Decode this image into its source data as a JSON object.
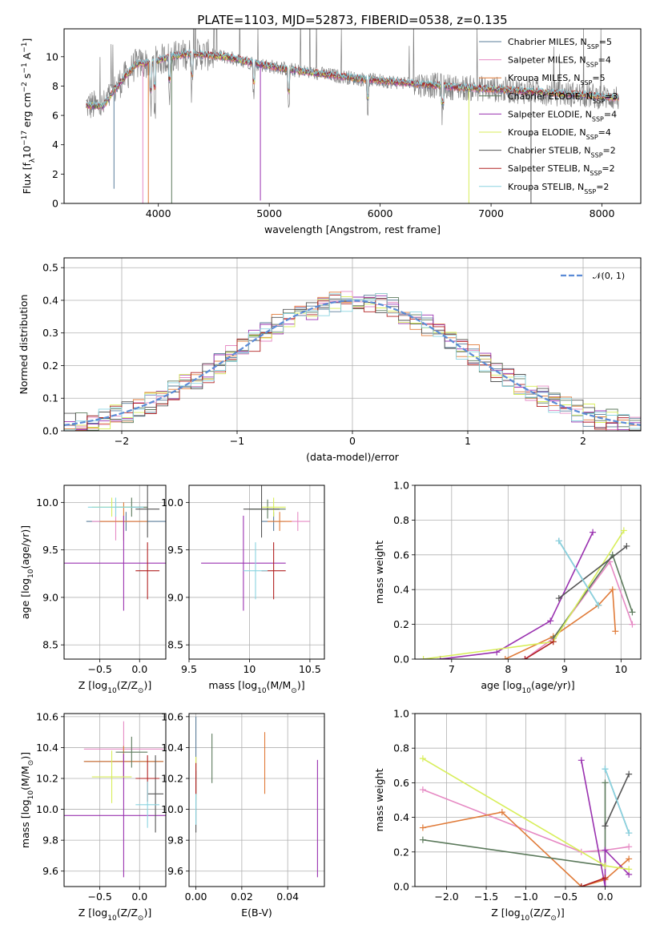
{
  "figure_title": "PLATE=1103, MJD=52873, FIBERID=0538, z=0.135",
  "models": [
    {
      "name": "Chabrier MILES",
      "nssp": "5",
      "color": "#5a7d9a"
    },
    {
      "name": "Salpeter MILES",
      "nssp": "4",
      "color": "#e68ac4"
    },
    {
      "name": "Kroupa MILES",
      "nssp": "5",
      "color": "#e07b39"
    },
    {
      "name": "Chabrier ELODIE",
      "nssp": "3",
      "color": "#5c7a5c"
    },
    {
      "name": "Salpeter ELODIE",
      "nssp": "4",
      "color": "#9a32b0"
    },
    {
      "name": "Kroupa ELODIE",
      "nssp": "4",
      "color": "#d8ee5a"
    },
    {
      "name": "Chabrier STELIB",
      "nssp": "2",
      "color": "#555555"
    },
    {
      "name": "Salpeter STELIB",
      "nssp": "2",
      "color": "#b22222"
    },
    {
      "name": "Kroupa STELIB",
      "nssp": "2",
      "color": "#8ad4e0"
    }
  ],
  "nssp_prefix": "N",
  "nssp_sub": "SSP",
  "nssp_eq": "=",
  "chart_data": [
    {
      "id": "spectrum",
      "type": "line",
      "xlabel": "wavelength [Angstrom, rest frame]",
      "ylabel_parts": [
        "Flux [f",
        "λ",
        "10",
        "−17",
        " erg cm",
        "−2",
        " s",
        "−1",
        " A",
        "−1",
        "]"
      ],
      "xlim": [
        3150,
        8350
      ],
      "ylim": [
        0,
        11.9
      ],
      "xticks": [
        4000,
        5000,
        6000,
        7000,
        8000
      ],
      "yticks": [
        0,
        2,
        4,
        6,
        8,
        10
      ],
      "data_range": [
        3350,
        8150
      ],
      "continuum": [
        [
          3350,
          6.7
        ],
        [
          3500,
          6.6
        ],
        [
          3650,
          8.2
        ],
        [
          3800,
          9.5
        ],
        [
          3950,
          9.6
        ],
        [
          4100,
          10.0
        ],
        [
          4300,
          10.2
        ],
        [
          4600,
          10.0
        ],
        [
          4900,
          9.5
        ],
        [
          5200,
          9.1
        ],
        [
          5500,
          8.8
        ],
        [
          5800,
          8.5
        ],
        [
          6100,
          8.3
        ],
        [
          6400,
          8.1
        ],
        [
          6700,
          7.9
        ],
        [
          7000,
          7.8
        ],
        [
          7400,
          7.6
        ],
        [
          7800,
          7.4
        ],
        [
          8150,
          7.2
        ]
      ],
      "absorption_features": [
        [
          3933,
          3.0
        ],
        [
          3968,
          2.8
        ],
        [
          4101,
          2.5
        ],
        [
          4304,
          2.3
        ],
        [
          4861,
          2.0
        ],
        [
          5175,
          2.4
        ],
        [
          5890,
          2.0
        ],
        [
          6563,
          1.8
        ]
      ],
      "gaps": [
        [
          3600,
          1.0
        ],
        [
          3860,
          0.0
        ],
        [
          3910,
          0.0
        ],
        [
          4120,
          0.0
        ],
        [
          4920,
          0.2
        ],
        [
          6800,
          0.0
        ],
        [
          7360,
          0.0
        ]
      ]
    },
    {
      "id": "residuals",
      "type": "bar",
      "xlabel": "(data-model)/error",
      "ylabel": "Normed distribution",
      "xlim": [
        -2.5,
        2.5
      ],
      "ylim": [
        0,
        0.53
      ],
      "xticks": [
        -2,
        -1,
        0,
        1,
        2
      ],
      "yticks": [
        0,
        0.1,
        0.2,
        0.3,
        0.4,
        0.5
      ],
      "bin_width": 0.1,
      "reference_curve": "normal",
      "reference_label": "𝒩(0, 1)"
    },
    {
      "id": "age-vs-Z",
      "type": "scatter",
      "xlabel_parts": [
        "Z [log",
        "10",
        "(Z/Z",
        "⊙",
        ")]"
      ],
      "ylabel_parts": [
        "age  [log",
        "10",
        "(age/yr)]"
      ],
      "xlim": [
        -0.95,
        0.33
      ],
      "ylim": [
        8.35,
        10.18
      ],
      "xticks": [
        -0.5,
        0.0
      ],
      "xtick_labels": [
        "−0.5",
        "0.0"
      ],
      "yticks": [
        8.5,
        9.0,
        9.5,
        10.0
      ],
      "points": [
        [
          -0.17,
          9.8,
          0.5,
          0.1
        ],
        [
          -0.3,
          9.8,
          0.3,
          0.2
        ],
        [
          -0.2,
          9.8,
          0.3,
          0.2
        ],
        [
          -0.1,
          9.95,
          0.2,
          0.1
        ],
        [
          -0.2,
          9.36,
          0.8,
          0.5
        ],
        [
          -0.35,
          9.95,
          0.25,
          0.1
        ],
        [
          0.1,
          9.93,
          0.15,
          0.3
        ],
        [
          0.1,
          9.28,
          0.15,
          0.3
        ],
        [
          -0.3,
          9.95,
          0.35,
          0.1
        ]
      ]
    },
    {
      "id": "age-vs-mass",
      "type": "scatter",
      "xlabel_parts": [
        "mass [log",
        "10",
        "(M/M",
        "⊙",
        ")]"
      ],
      "ylabel": "",
      "xlim": [
        9.5,
        10.62
      ],
      "ylim": [
        8.35,
        10.18
      ],
      "xticks": [
        9.5,
        10.0,
        10.5
      ],
      "yticks": [
        8.5,
        9.0,
        9.5,
        10.0
      ],
      "points": [
        [
          10.2,
          9.8,
          0.1,
          0.1
        ],
        [
          10.4,
          9.8,
          0.1,
          0.1
        ],
        [
          10.25,
          9.8,
          0.1,
          0.1
        ],
        [
          10.15,
          9.93,
          0.15,
          0.1
        ],
        [
          9.95,
          9.36,
          0.35,
          0.5
        ],
        [
          10.2,
          9.95,
          0.1,
          0.1
        ],
        [
          10.1,
          9.93,
          0.15,
          0.3
        ],
        [
          10.2,
          9.28,
          0.1,
          0.3
        ],
        [
          10.05,
          9.28,
          0.1,
          0.3
        ]
      ]
    },
    {
      "id": "mass-weight-vs-age",
      "type": "line",
      "xlabel_parts": [
        "age  [log",
        "10",
        "(age/yr)]"
      ],
      "ylabel": "mass weight",
      "xlim": [
        6.35,
        10.35
      ],
      "ylim": [
        0,
        1.0
      ],
      "xticks": [
        7,
        8,
        9,
        10
      ],
      "yticks": [
        0.0,
        0.2,
        0.4,
        0.6,
        0.8,
        1.0
      ],
      "series": [
        {
          "x": [
            8.9,
            9.6
          ],
          "y": [
            0.68,
            0.31
          ]
        },
        {
          "x": [
            8.3,
            8.8,
            9.8,
            10.2
          ],
          "y": [
            0.0,
            0.12,
            0.56,
            0.2
          ]
        },
        {
          "x": [
            7.95,
            8.8,
            9.6,
            9.85,
            9.9
          ],
          "y": [
            0.0,
            0.13,
            0.31,
            0.4,
            0.16
          ]
        },
        {
          "x": [
            8.8,
            9.85,
            10.2
          ],
          "y": [
            0.12,
            0.6,
            0.27
          ]
        },
        {
          "x": [
            6.8,
            7.8,
            8.75,
            9.5
          ],
          "y": [
            0.0,
            0.04,
            0.22,
            0.73
          ]
        },
        {
          "x": [
            6.5,
            8.8,
            10.05
          ],
          "y": [
            0.0,
            0.1,
            0.74
          ]
        },
        {
          "x": [
            8.9,
            10.1
          ],
          "y": [
            0.35,
            0.65
          ]
        },
        {
          "x": [
            8.3,
            8.8
          ],
          "y": [
            0.0,
            0.1
          ]
        },
        {
          "x": [
            8.9,
            9.6
          ],
          "y": [
            0.68,
            0.31
          ]
        }
      ]
    },
    {
      "id": "mass-vs-Z",
      "type": "scatter",
      "xlabel_parts": [
        "Z [log",
        "10",
        "(Z/Z",
        "⊙",
        ")]"
      ],
      "ylabel_parts": [
        "mass [log",
        "10",
        "(M/M",
        "⊙",
        ")]"
      ],
      "xlim": [
        -0.95,
        0.33
      ],
      "ylim": [
        9.5,
        10.62
      ],
      "xticks": [
        -0.5,
        0.0
      ],
      "xtick_labels": [
        "−0.5",
        "0.0"
      ],
      "yticks": [
        9.6,
        9.8,
        10.0,
        10.2,
        10.4,
        10.6
      ],
      "points": [
        [
          -0.2,
          10.31,
          0.5,
          0.1
        ],
        [
          -0.2,
          10.39,
          0.5,
          0.18
        ],
        [
          -0.2,
          10.31,
          0.5,
          0.1
        ],
        [
          -0.1,
          10.37,
          0.2,
          0.1
        ],
        [
          -0.2,
          9.96,
          0.8,
          0.4
        ],
        [
          -0.35,
          10.21,
          0.25,
          0.17
        ],
        [
          0.2,
          10.1,
          0.1,
          0.25
        ],
        [
          0.1,
          10.2,
          0.15,
          0.15
        ],
        [
          0.1,
          10.03,
          0.15,
          0.15
        ]
      ]
    },
    {
      "id": "mass-vs-ebv",
      "type": "scatter",
      "xlabel": "E(B-V)",
      "ylabel": "",
      "xlim": [
        -0.003,
        0.056
      ],
      "ylim": [
        9.5,
        10.62
      ],
      "xticks": [
        0.0,
        0.02,
        0.04
      ],
      "xtick_labels": [
        "0.00",
        "0.02",
        "0.04"
      ],
      "yticks": [
        9.6,
        9.8,
        10.0,
        10.2,
        10.4,
        10.6
      ],
      "points": [
        [
          0.0,
          10.4,
          0,
          0.2
        ],
        [
          0.0,
          10.22,
          0,
          0.12
        ],
        [
          0.03,
          10.3,
          0,
          0.2
        ],
        [
          0.007,
          10.33,
          0,
          0.16
        ],
        [
          0.053,
          9.94,
          0,
          0.38
        ],
        [
          0.0,
          10.2,
          0,
          0.14
        ],
        [
          0.0,
          10.05,
          0,
          0.2
        ],
        [
          0.0,
          10.2,
          0,
          0.1
        ],
        [
          0.0,
          10.0,
          0,
          0.1
        ]
      ]
    },
    {
      "id": "mass-weight-vs-Z",
      "type": "line",
      "xlabel_parts": [
        "Z [log",
        "10",
        "(Z/Z",
        "⊙",
        ")]"
      ],
      "ylabel": "mass weight",
      "xlim": [
        -2.4,
        0.45
      ],
      "ylim": [
        0,
        1.0
      ],
      "xticks": [
        -2.0,
        -1.5,
        -1.0,
        -0.5,
        0.0
      ],
      "xtick_labels": [
        "−2.0",
        "−1.5",
        "−1.0",
        "−0.5",
        "0.0"
      ],
      "yticks": [
        0.0,
        0.2,
        0.4,
        0.6,
        0.8,
        1.0
      ],
      "series": [
        {
          "x": [
            0.0,
            0.3
          ],
          "y": [
            0.68,
            0.31
          ]
        },
        {
          "x": [
            -2.3,
            -0.3,
            0.0,
            0.3
          ],
          "y": [
            0.56,
            0.2,
            0.21,
            0.23
          ]
        },
        {
          "x": [
            -2.3,
            -1.3,
            -0.3,
            0.0,
            0.3
          ],
          "y": [
            0.34,
            0.43,
            0.0,
            0.04,
            0.16
          ]
        },
        {
          "x": [
            -2.3,
            0.0,
            0.0
          ],
          "y": [
            0.27,
            0.12,
            0.6
          ]
        },
        {
          "x": [
            -0.3,
            0.0,
            0.0,
            0.3
          ],
          "y": [
            0.73,
            0.0,
            0.21,
            0.07
          ]
        },
        {
          "x": [
            -2.3,
            0.0,
            0.3
          ],
          "y": [
            0.74,
            0.12,
            0.1
          ]
        },
        {
          "x": [
            0.0,
            0.3
          ],
          "y": [
            0.35,
            0.65
          ]
        },
        {
          "x": [
            -0.3,
            0.0
          ],
          "y": [
            0.0,
            0.05
          ]
        },
        {
          "x": [
            0.0,
            0.3
          ],
          "y": [
            0.68,
            0.31
          ]
        }
      ]
    }
  ]
}
